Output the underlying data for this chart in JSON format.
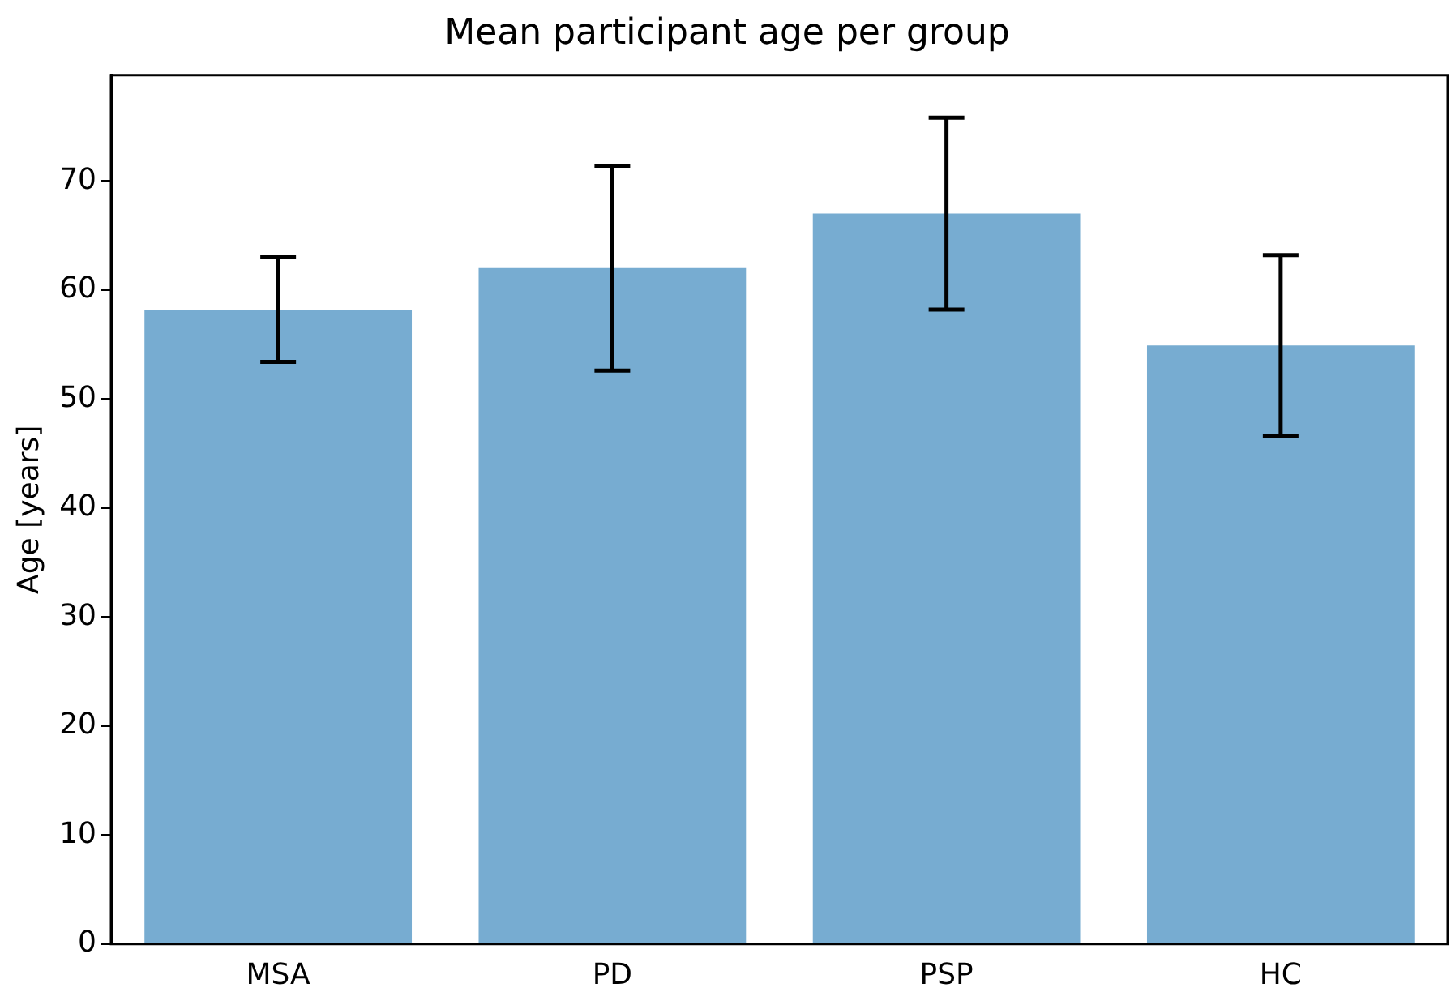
{
  "chart_data": {
    "type": "bar",
    "title": "Mean participant age per group",
    "ylabel": "Age [years]",
    "categories": [
      "MSA",
      "PD",
      "PSP",
      "HC"
    ],
    "values": [
      58.2,
      62.0,
      67.0,
      54.9
    ],
    "errors": [
      4.8,
      9.4,
      8.8,
      8.3
    ],
    "color": "#77acd1",
    "ylim": [
      0,
      79.7
    ],
    "yticks": [
      0,
      10,
      20,
      30,
      40,
      50,
      60,
      70
    ],
    "grid": false,
    "legend": false
  }
}
